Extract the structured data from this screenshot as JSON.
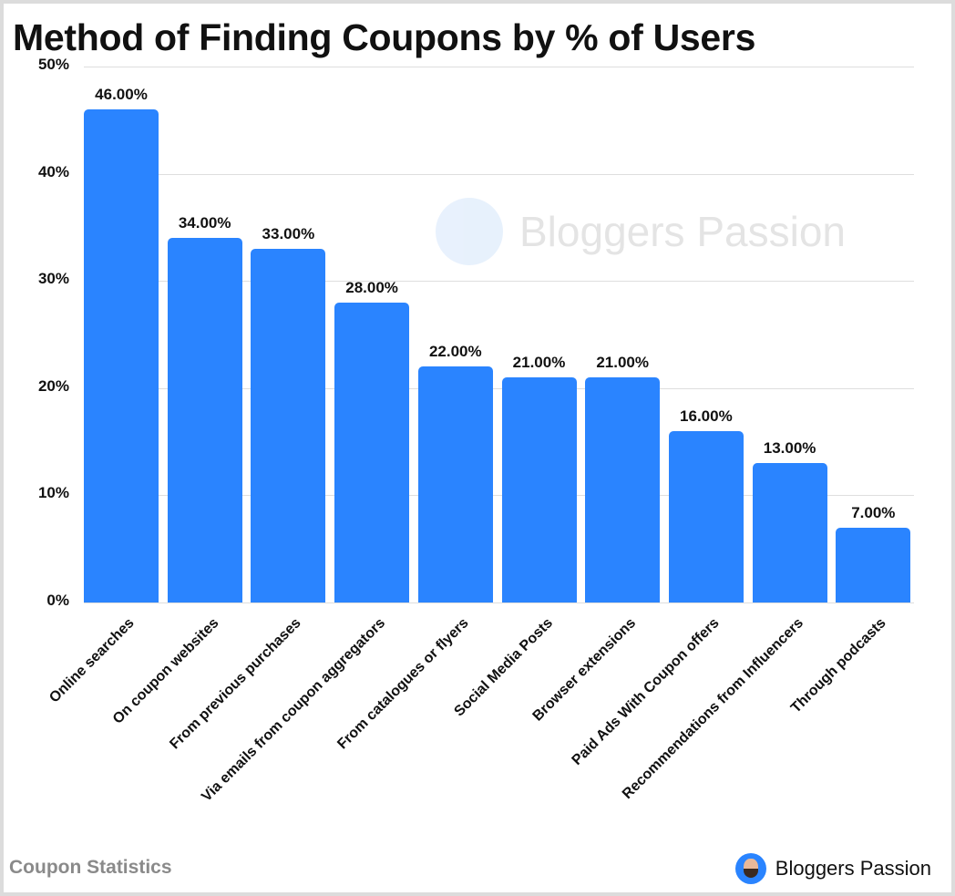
{
  "title": "Method of Finding Coupons by % of Users",
  "footer": {
    "left": "Coupon Statistics",
    "brand": "Bloggers Passion"
  },
  "watermark": {
    "text": "Bloggers Passion"
  },
  "colors": {
    "bar": "#2a84ff",
    "grid": "#dedede",
    "text": "#111111"
  },
  "y_ticks": [
    "50%",
    "40%",
    "30%",
    "20%",
    "10%",
    "0%"
  ],
  "chart_data": {
    "type": "bar",
    "title": "Method of Finding Coupons by % of Users",
    "xlabel": "",
    "ylabel": "",
    "ylim": [
      0,
      50
    ],
    "grid": true,
    "categories": [
      "Online searches",
      "On coupon websites",
      "From previous purchases",
      "Via emails from coupon aggregators",
      "From catalogues or flyers",
      "Social Media Posts",
      "Browser extensions",
      "Paid Ads With Coupon offers",
      "Recommendations from Influencers",
      "Through podcasts"
    ],
    "values": [
      46,
      34,
      33,
      28,
      22,
      21,
      21,
      16,
      13,
      7
    ],
    "labels": [
      "46.00%",
      "34.00%",
      "33.00%",
      "28.00%",
      "22.00%",
      "21.00%",
      "21.00%",
      "16.00%",
      "13.00%",
      "7.00%"
    ],
    "y_tick_labels": [
      "0%",
      "10%",
      "20%",
      "30%",
      "40%",
      "50%"
    ]
  }
}
